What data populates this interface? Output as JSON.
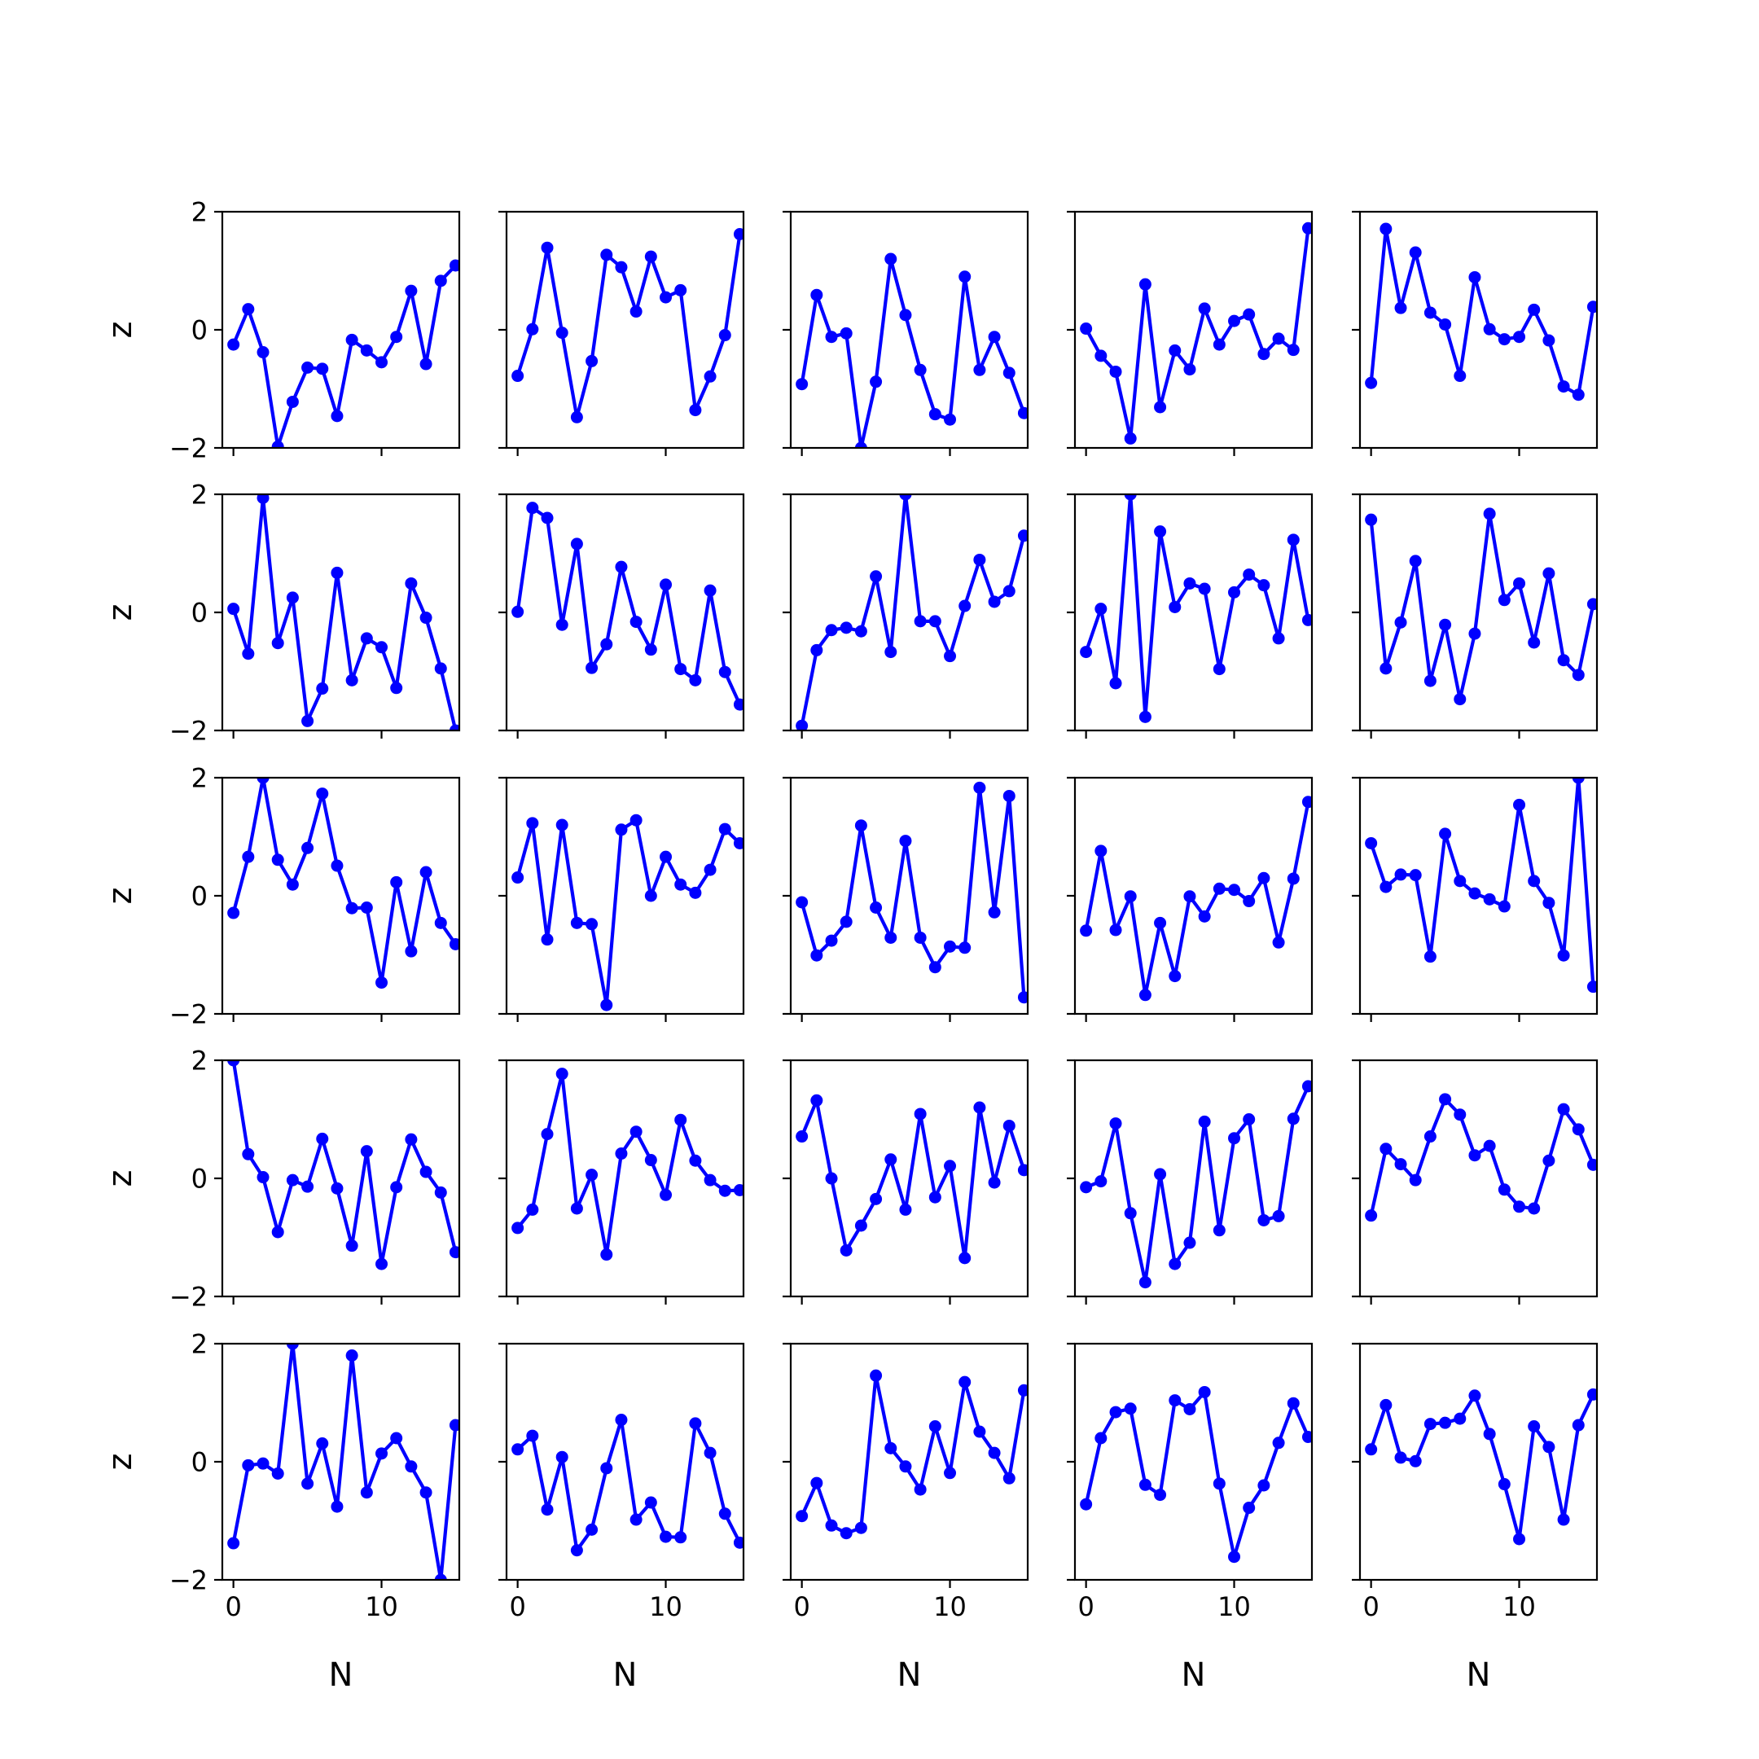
{
  "chart_data": {
    "type": "line",
    "layout": {
      "rows": 5,
      "cols": 5
    },
    "xlabel": "N",
    "ylabel": "z",
    "xlim": [
      -0.75,
      15.25
    ],
    "ylim": [
      -2,
      2
    ],
    "xticks": [
      0,
      10
    ],
    "yticks": [
      -2,
      0,
      2
    ],
    "xtick_labels": [
      "0",
      "10"
    ],
    "ytick_labels": [
      "−2",
      "0",
      "2"
    ],
    "line_color": "#0000ff",
    "x": [
      0,
      1,
      2,
      3,
      4,
      5,
      6,
      7,
      8,
      9,
      10,
      11,
      12,
      13,
      14,
      15
    ],
    "panels": [
      [
        -0.25,
        0.35,
        -0.38,
        -1.98,
        -1.22,
        -0.64,
        -0.66,
        -1.46,
        -0.17,
        -0.35,
        -0.55,
        -0.12,
        0.66,
        -0.58,
        0.83,
        1.09
      ],
      [
        -0.78,
        0.01,
        1.39,
        -0.05,
        -1.48,
        -0.53,
        1.27,
        1.06,
        0.31,
        1.24,
        0.55,
        0.67,
        -1.36,
        -0.79,
        -0.09,
        1.62
      ],
      [
        -0.92,
        0.59,
        -0.12,
        -0.06,
        -2.0,
        -0.88,
        1.2,
        0.25,
        -0.68,
        -1.43,
        -1.52,
        0.9,
        -0.68,
        -0.12,
        -0.73,
        -1.41
      ],
      [
        0.02,
        -0.44,
        -0.71,
        -1.84,
        0.77,
        -1.31,
        -0.35,
        -0.67,
        0.36,
        -0.25,
        0.15,
        0.26,
        -0.41,
        -0.15,
        -0.34,
        1.72
      ],
      [
        -0.9,
        1.71,
        0.37,
        1.31,
        0.29,
        0.09,
        -0.78,
        0.89,
        0.01,
        -0.16,
        -0.12,
        0.34,
        -0.18,
        -0.96,
        -1.1,
        0.39
      ],
      [
        0.06,
        -0.7,
        1.94,
        -0.52,
        0.25,
        -1.84,
        -1.29,
        0.67,
        -1.15,
        -0.44,
        -0.59,
        -1.28,
        0.49,
        -0.09,
        -0.95,
        -2.0
      ],
      [
        0.01,
        1.77,
        1.6,
        -0.21,
        1.16,
        -0.94,
        -0.54,
        0.77,
        -0.16,
        -0.63,
        0.47,
        -0.96,
        -1.15,
        0.37,
        -1.01,
        -1.56
      ],
      [
        -1.92,
        -0.64,
        -0.3,
        -0.26,
        -0.32,
        0.61,
        -0.67,
        2.0,
        -0.15,
        -0.15,
        -0.74,
        0.11,
        0.89,
        0.18,
        0.36,
        1.3
      ],
      [
        -0.67,
        0.06,
        -1.2,
        2.0,
        -1.77,
        1.37,
        0.09,
        0.49,
        0.4,
        -0.96,
        0.34,
        0.64,
        0.46,
        -0.44,
        1.23,
        -0.13
      ],
      [
        1.57,
        -0.95,
        -0.17,
        0.87,
        -1.16,
        -0.21,
        -1.47,
        -0.36,
        1.67,
        0.21,
        0.49,
        -0.51,
        0.66,
        -0.81,
        -1.06,
        0.14
      ],
      [
        -0.29,
        0.66,
        2.0,
        0.61,
        0.19,
        0.81,
        1.73,
        0.51,
        -0.21,
        -0.2,
        -1.47,
        0.23,
        -0.94,
        0.4,
        -0.46,
        -0.82
      ],
      [
        0.31,
        1.23,
        -0.74,
        1.2,
        -0.46,
        -0.48,
        -1.85,
        1.12,
        1.28,
        0.0,
        0.66,
        0.19,
        0.05,
        0.44,
        1.13,
        0.89
      ],
      [
        -0.11,
        -1.01,
        -0.76,
        -0.44,
        1.19,
        -0.2,
        -0.71,
        0.93,
        -0.71,
        -1.21,
        -0.86,
        -0.88,
        1.83,
        -0.28,
        1.69,
        -1.72
      ],
      [
        -0.59,
        0.76,
        -0.58,
        -0.01,
        -1.68,
        -0.46,
        -1.36,
        -0.01,
        -0.35,
        0.12,
        0.1,
        -0.09,
        0.3,
        -0.79,
        0.29,
        1.59
      ],
      [
        0.89,
        0.15,
        0.36,
        0.35,
        -1.03,
        1.05,
        0.25,
        0.04,
        -0.06,
        -0.18,
        1.54,
        0.25,
        -0.12,
        -1.01,
        2.0,
        -1.54
      ],
      [
        2.0,
        0.41,
        0.02,
        -0.91,
        -0.03,
        -0.14,
        0.67,
        -0.17,
        -1.14,
        0.46,
        -1.45,
        -0.15,
        0.66,
        0.11,
        -0.24,
        -1.25
      ],
      [
        -0.84,
        -0.53,
        0.75,
        1.77,
        -0.51,
        0.06,
        -1.29,
        0.42,
        0.79,
        0.31,
        -0.28,
        0.99,
        0.3,
        -0.03,
        -0.21,
        -0.2
      ],
      [
        0.71,
        1.32,
        0.0,
        -1.22,
        -0.8,
        -0.35,
        0.32,
        -0.53,
        1.09,
        -0.32,
        0.21,
        -1.35,
        1.2,
        -0.07,
        0.89,
        0.14
      ],
      [
        -0.15,
        -0.05,
        0.93,
        -0.59,
        -1.76,
        0.07,
        -1.45,
        -1.09,
        0.96,
        -0.88,
        0.68,
        1.0,
        -0.71,
        -0.64,
        1.01,
        1.56
      ],
      [
        -0.63,
        0.5,
        0.24,
        -0.03,
        0.71,
        1.34,
        1.08,
        0.39,
        0.55,
        -0.19,
        -0.48,
        -0.51,
        0.3,
        1.17,
        0.83,
        0.23
      ],
      [
        -1.38,
        -0.06,
        -0.03,
        -0.2,
        2.0,
        -0.37,
        0.31,
        -0.76,
        1.8,
        -0.52,
        0.14,
        0.4,
        -0.08,
        -0.52,
        -2.0,
        0.62
      ],
      [
        0.21,
        0.44,
        -0.81,
        0.08,
        -1.5,
        -1.15,
        -0.11,
        0.71,
        -0.98,
        -0.69,
        -1.27,
        -1.28,
        0.65,
        0.15,
        -0.88,
        -1.37
      ],
      [
        -0.92,
        -0.36,
        -1.08,
        -1.21,
        -1.12,
        1.46,
        0.23,
        -0.08,
        -0.47,
        0.6,
        -0.19,
        1.35,
        0.51,
        0.15,
        -0.28,
        1.21
      ],
      [
        -0.72,
        0.4,
        0.84,
        0.9,
        -0.39,
        -0.56,
        1.04,
        0.89,
        1.18,
        -0.37,
        -1.61,
        -0.78,
        -0.4,
        0.32,
        0.99,
        0.42
      ],
      [
        0.21,
        0.96,
        0.07,
        0.01,
        0.64,
        0.66,
        0.73,
        1.12,
        0.47,
        -0.38,
        -1.31,
        0.6,
        0.25,
        -0.98,
        0.62,
        1.14
      ]
    ]
  }
}
